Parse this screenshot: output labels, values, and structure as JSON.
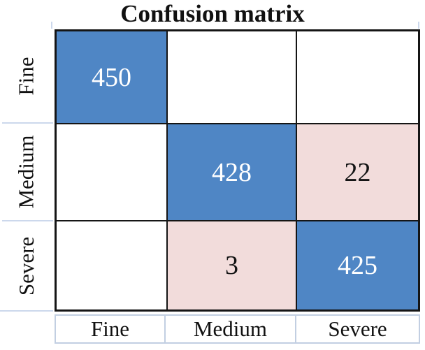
{
  "title": "Confusion matrix",
  "chart_data": {
    "type": "heatmap",
    "title": "Confusion matrix",
    "row_labels": [
      "Fine",
      "Medium",
      "Severe"
    ],
    "col_labels": [
      "Fine",
      "Medium",
      "Severe"
    ],
    "matrix": [
      [
        450,
        null,
        null
      ],
      [
        null,
        428,
        22
      ],
      [
        null,
        3,
        425
      ]
    ],
    "cell_fill_pattern": [
      [
        "blue",
        "white",
        "white"
      ],
      [
        "white",
        "blue",
        "pink"
      ],
      [
        "white",
        "pink",
        "blue"
      ]
    ],
    "colors": {
      "diagonal_blue": "#4f86c5",
      "offdiagonal_pink": "#f2dcdb",
      "empty_white": "#ffffff",
      "grid_border": "#151515",
      "label_cell_border": "#c2cfe2",
      "tick": "#ccd8ec",
      "text_on_blue": "#ffffff",
      "text_on_pink": "#141414"
    },
    "legend": "none",
    "grid": "on"
  }
}
